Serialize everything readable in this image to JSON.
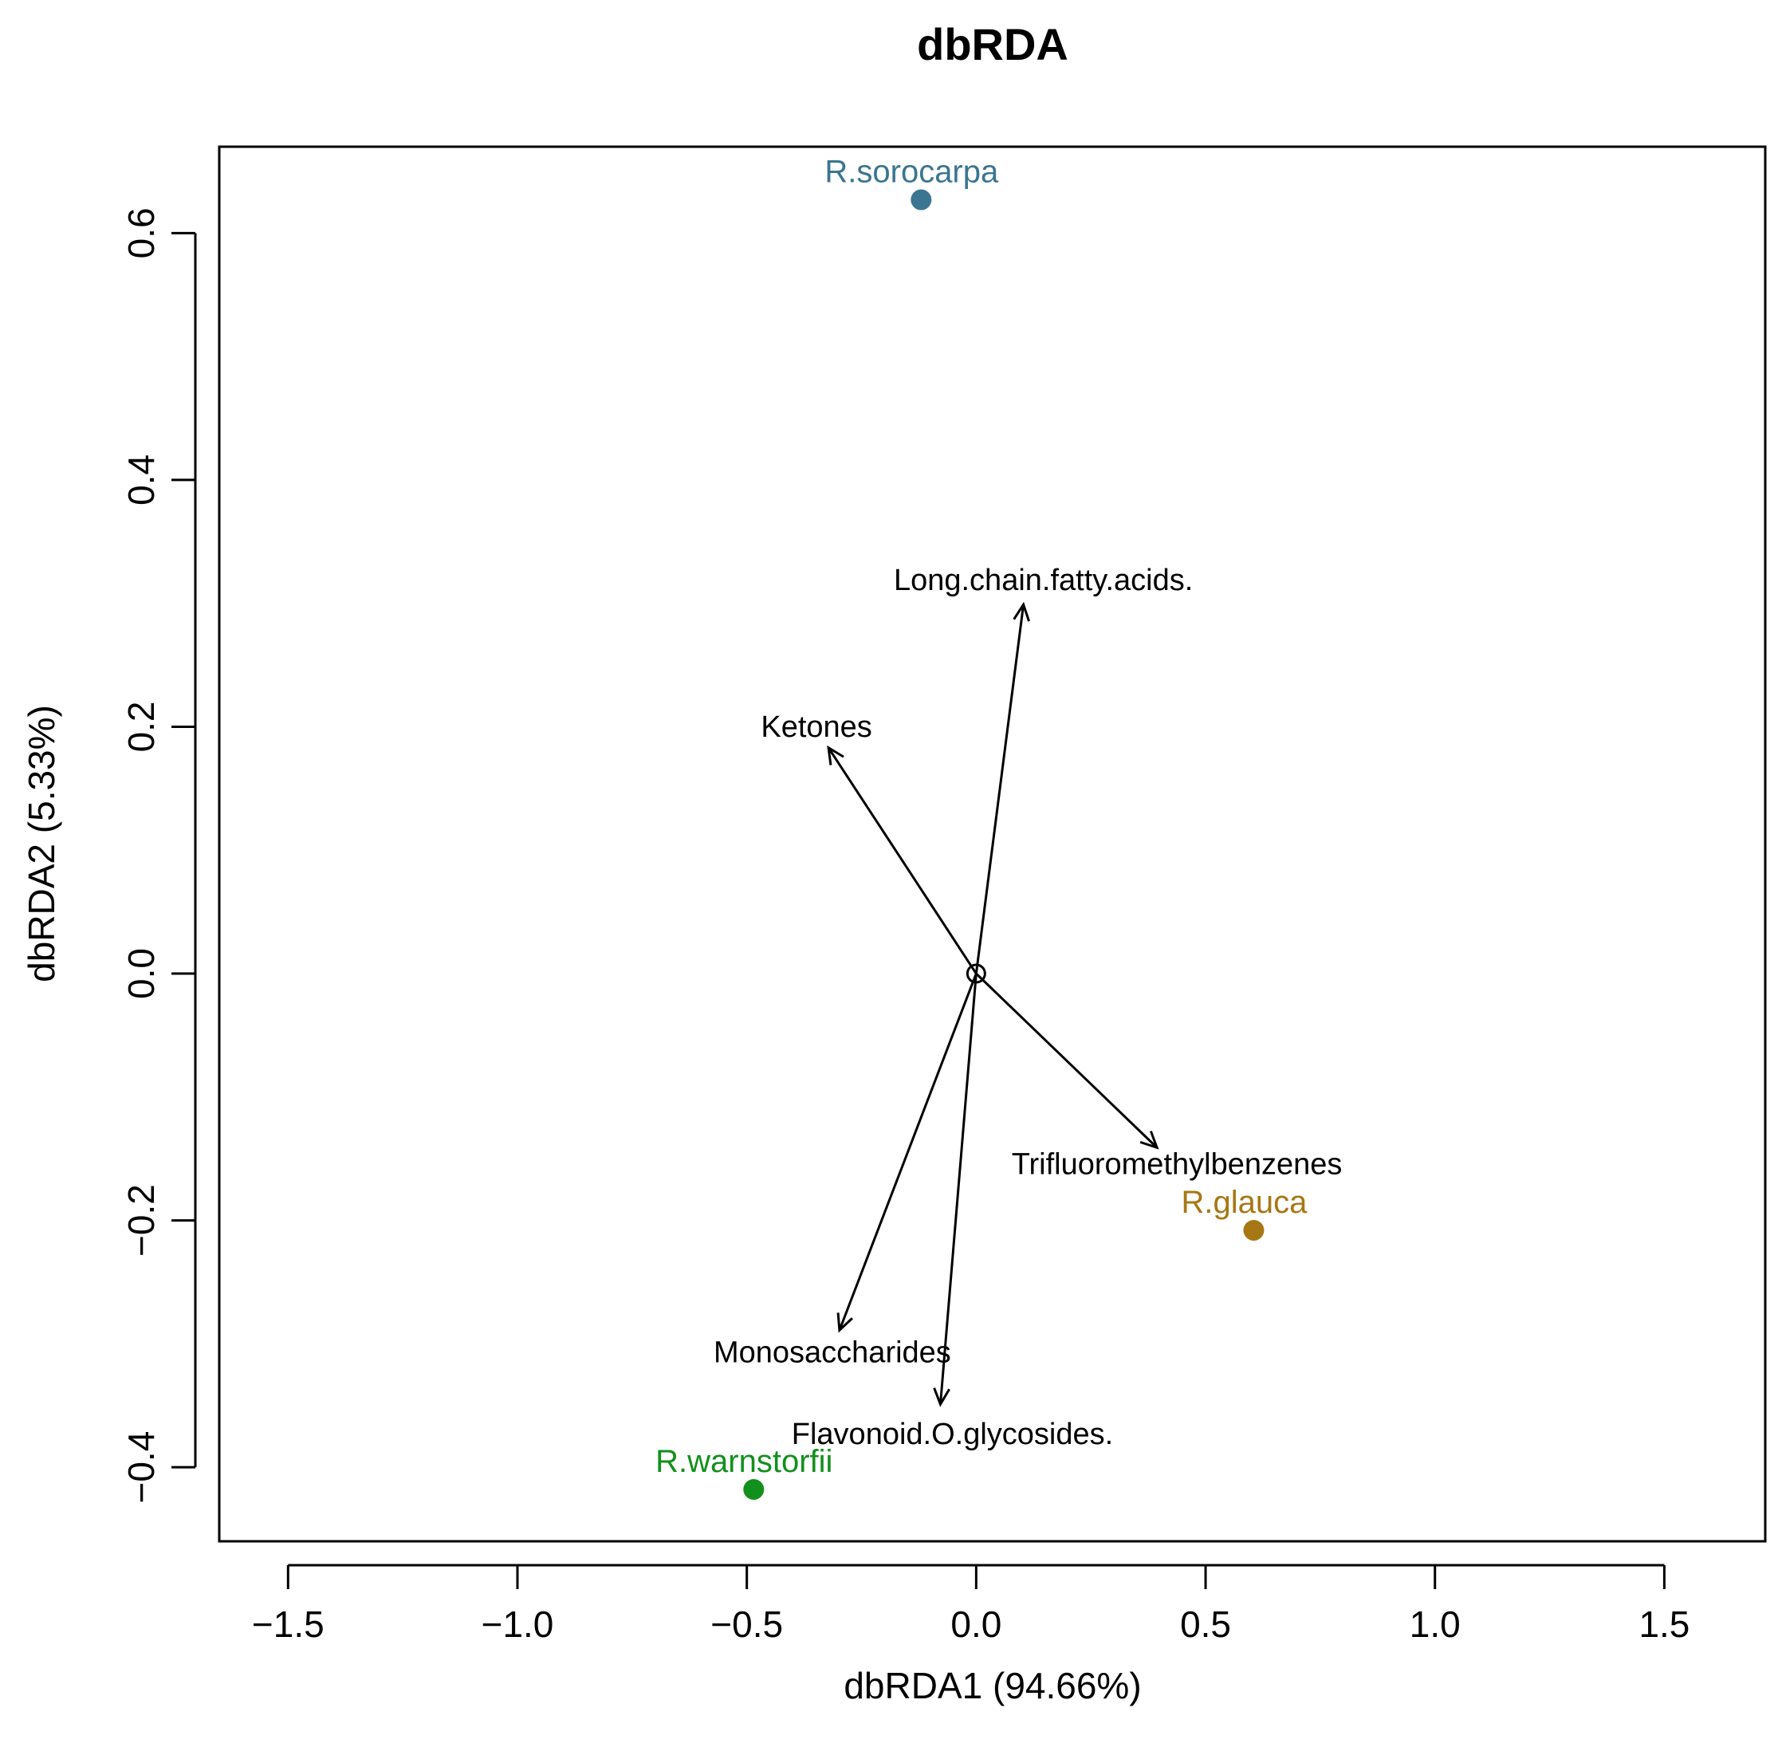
{
  "chart_data": {
    "type": "scatter",
    "title": "dbRDA",
    "xlabel": "dbRDA1 (94.66%)",
    "ylabel": "dbRDA2 (5.33%)",
    "xlim": [
      -1.65,
      1.72
    ],
    "ylim": [
      -0.46,
      0.67
    ],
    "x_ticks": [
      -1.5,
      -1.0,
      -0.5,
      0.0,
      0.5,
      1.0,
      1.5
    ],
    "x_tick_labels": [
      "−1.5",
      "−1.0",
      "−0.5",
      "0.0",
      "0.5",
      "1.0",
      "1.5"
    ],
    "y_ticks": [
      -0.4,
      -0.2,
      0.0,
      0.2,
      0.4,
      0.6
    ],
    "y_tick_labels": [
      "−0.4",
      "−0.2",
      "0.0",
      "0.2",
      "0.4",
      "0.6"
    ],
    "grid": false,
    "origin": {
      "x": 0.0,
      "y": 0.0
    },
    "points": [
      {
        "name": "R.sorocarpa",
        "x": -0.12,
        "y": 0.627,
        "color": "#3a7591"
      },
      {
        "name": "R.glauca",
        "x": 0.605,
        "y": -0.208,
        "color": "#a77714"
      },
      {
        "name": "R.warnstorfii",
        "x": -0.485,
        "y": -0.418,
        "color": "#12901c"
      }
    ],
    "vectors": [
      {
        "name": "Long.chain.fatty.acids.",
        "x": 0.103,
        "y": 0.299
      },
      {
        "name": "Ketones",
        "x": -0.322,
        "y": 0.183
      },
      {
        "name": "Trifluoromethylbenzenes",
        "x": 0.394,
        "y": -0.141
      },
      {
        "name": "Monosaccharides",
        "x": -0.298,
        "y": -0.289
      },
      {
        "name": "Flavonoid.O.glycosides.",
        "x": -0.078,
        "y": -0.349
      }
    ]
  }
}
